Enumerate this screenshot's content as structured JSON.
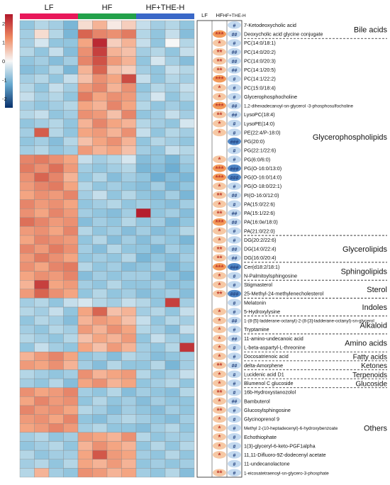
{
  "chart_data": {
    "type": "heatmap",
    "title": "",
    "groups": [
      {
        "name": "LF",
        "color": "#e8185a",
        "n": 4
      },
      {
        "name": "HF",
        "color": "#22a14a",
        "n": 4
      },
      {
        "name": "HF+THE-H",
        "color": "#3a68c8",
        "n": 4
      }
    ],
    "scale": {
      "min": -2.5,
      "max": 2.5,
      "ticks": [
        "2",
        "1",
        "0",
        "-1",
        "-2"
      ],
      "tick_values": [
        2,
        1,
        0,
        -1,
        -2
      ]
    },
    "sig_headers": [
      "LF",
      "HF",
      "HF+THE-H"
    ],
    "rows": [
      {
        "label": "7-Ketodeoxycholic acid",
        "values": [
          -0.6,
          -0.4,
          -0.5,
          -0.8,
          0.2,
          0.5,
          0.1,
          0.3,
          -0.3,
          -0.5,
          -0.4,
          -0.6
        ],
        "hf": "",
        "the": "#"
      },
      {
        "label": "Deoxycholic acid glycine conjugate",
        "values": [
          -0.5,
          0.2,
          -0.4,
          -0.8,
          1.2,
          0.9,
          0.8,
          1.0,
          -0.4,
          -0.6,
          -0.3,
          -0.7
        ],
        "hf": "***",
        "the": "##"
      },
      {
        "label": "PC(14:0/18:1)",
        "values": [
          -0.5,
          -0.2,
          -0.6,
          -0.6,
          0.6,
          2.2,
          0.3,
          0.5,
          -0.3,
          -0.6,
          0.0,
          -0.4
        ],
        "hf": "*",
        "the": "#"
      },
      {
        "label": "PC(14:0/20:2)",
        "values": [
          -0.4,
          -0.6,
          -0.3,
          -0.7,
          0.8,
          1.8,
          0.5,
          0.4,
          -0.5,
          -0.4,
          -0.6,
          -0.3
        ],
        "hf": "**",
        "the": "##"
      },
      {
        "label": "PC(14:0/20:3)",
        "values": [
          -0.6,
          -0.5,
          -0.7,
          -0.5,
          0.9,
          1.5,
          0.7,
          0.5,
          -0.6,
          -0.2,
          -0.5,
          -0.7
        ],
        "hf": "**",
        "the": "##"
      },
      {
        "label": "PC(14:1/20:5)",
        "values": [
          -0.7,
          -0.6,
          -0.4,
          -0.8,
          0.5,
          1.2,
          0.4,
          0.3,
          -0.5,
          -0.6,
          -0.3,
          -0.4
        ],
        "hf": "**",
        "the": "##"
      },
      {
        "label": "PC(14:1/22:2)",
        "values": [
          -0.5,
          -0.4,
          -0.6,
          -0.3,
          0.4,
          0.8,
          0.6,
          1.6,
          -0.3,
          -0.6,
          -0.4,
          -0.5
        ],
        "hf": "***",
        "the": "#"
      },
      {
        "label": "PC(15:0/18:4)",
        "values": [
          -0.4,
          -0.6,
          -0.3,
          -0.5,
          0.7,
          0.9,
          0.5,
          0.8,
          -0.6,
          -0.4,
          -0.5,
          -0.3
        ],
        "hf": "*",
        "the": "#"
      },
      {
        "label": "Glycerophosphocholine",
        "values": [
          -0.3,
          -0.5,
          -0.4,
          -0.6,
          1.0,
          0.6,
          0.8,
          0.7,
          -0.5,
          -0.2,
          -0.6,
          -0.4
        ],
        "hf": "*",
        "the": "#"
      },
      {
        "label": "1,2-dihexadecanoyl-sn-glycerol -3-phosphosulfocholine",
        "values": [
          -0.5,
          -0.6,
          -0.5,
          -0.4,
          0.6,
          0.5,
          0.9,
          0.6,
          -0.4,
          -0.6,
          -0.5,
          -0.6
        ],
        "hf": "***",
        "the": "##"
      },
      {
        "label": "LysoPC(18:4)",
        "values": [
          -0.4,
          -0.3,
          -0.6,
          -0.5,
          0.8,
          0.7,
          0.4,
          0.9,
          -0.6,
          -0.5,
          -0.3,
          -0.5
        ],
        "hf": "**",
        "the": "##"
      },
      {
        "label": "LysoPE(14:0)",
        "values": [
          -0.6,
          -0.5,
          -0.4,
          -0.6,
          0.5,
          0.9,
          0.6,
          0.5,
          -0.4,
          -0.5,
          -0.6,
          -0.2
        ],
        "hf": "*",
        "the": "#"
      },
      {
        "label": "PE(22:4/P-18:0)",
        "values": [
          -0.5,
          1.3,
          -0.4,
          -0.6,
          0.6,
          0.7,
          0.5,
          0.8,
          -0.3,
          -0.6,
          -0.4,
          -0.5
        ],
        "hf": "*",
        "the": "#"
      },
      {
        "label": "PG(20:0)",
        "values": [
          -0.6,
          -0.5,
          -0.7,
          -0.4,
          0.4,
          0.6,
          0.8,
          0.5,
          -0.6,
          -0.4,
          -0.5,
          -0.6
        ],
        "hf": "",
        "the": "###"
      },
      {
        "label": "PG(22:1/22:6)",
        "values": [
          -0.5,
          -0.4,
          -0.6,
          -0.5,
          0.7,
          0.5,
          0.6,
          0.4,
          -0.5,
          -0.6,
          -0.3,
          -0.4
        ],
        "hf": "",
        "the": "#"
      },
      {
        "label": "PG(6:0/6:0)",
        "values": [
          0.9,
          1.0,
          0.8,
          0.6,
          -0.3,
          -0.5,
          -0.4,
          -0.2,
          -0.7,
          -0.6,
          -0.8,
          -0.5
        ],
        "hf": "*",
        "the": "#"
      },
      {
        "label": "PG(O-16:0/13:0)",
        "values": [
          1.0,
          0.8,
          1.1,
          0.7,
          -0.5,
          -0.6,
          -0.5,
          -0.4,
          -0.8,
          -0.7,
          -0.9,
          -0.6
        ],
        "hf": "***",
        "the": "###"
      },
      {
        "label": "PG(O-16:0/14:0)",
        "values": [
          0.8,
          1.2,
          0.9,
          0.5,
          -0.6,
          -0.4,
          -0.7,
          -0.5,
          -0.6,
          -0.9,
          -0.7,
          -0.8
        ],
        "hf": "***",
        "the": "###"
      },
      {
        "label": "PG(O-18:0/22:1)",
        "values": [
          0.7,
          0.9,
          1.0,
          0.6,
          -0.4,
          -0.6,
          -0.5,
          -0.6,
          -0.7,
          -0.5,
          -0.8,
          -0.6
        ],
        "hf": "*",
        "the": "#"
      },
      {
        "label": "PI(O-16:0/12:0)",
        "values": [
          0.6,
          0.8,
          0.7,
          0.9,
          -0.5,
          -0.3,
          -0.6,
          -0.4,
          -0.6,
          -0.7,
          -0.5,
          -0.8
        ],
        "hf": "**",
        "the": "##"
      },
      {
        "label": "PA(15:0/22:6)",
        "values": [
          0.9,
          0.7,
          0.8,
          0.6,
          -0.6,
          -0.5,
          -0.4,
          -0.6,
          -0.5,
          -0.6,
          -0.7,
          -0.5
        ],
        "hf": "*",
        "the": "#"
      },
      {
        "label": "PA(15:1/22:6)",
        "values": [
          0.8,
          0.6,
          0.9,
          0.7,
          -0.5,
          -0.6,
          -0.7,
          -0.5,
          2.4,
          -0.6,
          -0.5,
          -0.7
        ],
        "hf": "**",
        "the": "##"
      },
      {
        "label": "PA(16:0e/18:0)",
        "values": [
          1.1,
          0.9,
          0.7,
          0.8,
          -0.7,
          -0.5,
          -0.6,
          -0.4,
          -0.6,
          -0.5,
          -0.8,
          -0.6
        ],
        "hf": "***",
        "the": "##"
      },
      {
        "label": "PA(21:0/22:0)",
        "values": [
          0.7,
          0.8,
          0.6,
          0.9,
          -0.4,
          -0.6,
          -0.5,
          -0.7,
          -0.5,
          -0.7,
          -0.6,
          -0.4
        ],
        "hf": "*",
        "the": "#"
      },
      {
        "label": "DG(20:2/22:6)",
        "values": [
          0.6,
          0.9,
          0.8,
          0.7,
          -0.6,
          -0.4,
          -0.7,
          -0.5,
          -0.7,
          -0.5,
          -0.6,
          -0.8
        ],
        "hf": "*",
        "the": "#"
      },
      {
        "label": "DG(14:0/22:4)",
        "values": [
          0.9,
          0.7,
          1.0,
          0.8,
          -0.5,
          -0.7,
          -0.4,
          -0.6,
          -0.6,
          -0.8,
          -0.5,
          -0.6
        ],
        "hf": "**",
        "the": "##"
      },
      {
        "label": "DG(16:0/20:4)",
        "values": [
          0.7,
          1.0,
          0.8,
          0.6,
          -0.6,
          -0.5,
          -0.6,
          -0.4,
          -0.8,
          -0.6,
          -0.7,
          -0.5
        ],
        "hf": "**",
        "the": "##"
      },
      {
        "label": "Cer(d18:2/18:1)",
        "values": [
          0.8,
          0.6,
          0.9,
          1.0,
          -0.4,
          -0.6,
          -0.5,
          -0.7,
          -0.6,
          -0.5,
          -0.8,
          -0.6
        ],
        "hf": "***",
        "the": "###"
      },
      {
        "label": "N-Palmitoylsphingosine",
        "values": [
          0.6,
          0.8,
          0.7,
          0.9,
          -0.7,
          -0.5,
          -0.6,
          -0.5,
          -0.5,
          -0.7,
          -0.6,
          -0.8
        ],
        "hf": "*",
        "the": "#"
      },
      {
        "label": "Stigmasterol",
        "values": [
          0.5,
          1.8,
          0.6,
          0.7,
          -0.5,
          -0.6,
          -0.4,
          -0.6,
          -0.6,
          -0.5,
          -0.7,
          -0.6
        ],
        "hf": "*",
        "the": "#"
      },
      {
        "label": "25-Methyl-24-methylenecholesterol",
        "values": [
          0.7,
          1.2,
          0.8,
          0.6,
          -0.6,
          -0.4,
          -0.6,
          -0.5,
          -0.7,
          -0.6,
          -0.5,
          -0.7
        ],
        "hf": "**",
        "the": "###"
      },
      {
        "label": "Melatonin",
        "values": [
          -0.5,
          -0.4,
          -0.6,
          -0.3,
          -0.2,
          -0.4,
          -0.5,
          -0.3,
          -0.4,
          -0.6,
          1.8,
          -0.5
        ],
        "hf": "",
        "the": "#"
      },
      {
        "label": "5-Hydroxylysine",
        "values": [
          -0.4,
          -0.5,
          -0.3,
          -0.6,
          0.6,
          1.2,
          0.4,
          0.5,
          -0.5,
          -0.4,
          -0.6,
          -0.3
        ],
        "hf": "*",
        "the": "#"
      },
      {
        "label": "1-(8-[5]-ladderane-octanyl)-2-(8-[3]-ladderane-octanyl)-sn-glycerol",
        "values": [
          -0.6,
          -0.4,
          -0.5,
          -0.7,
          0.5,
          0.7,
          0.6,
          0.4,
          -0.3,
          -0.6,
          -0.4,
          -0.5
        ],
        "hf": "*",
        "the": "##"
      },
      {
        "label": "Tryptamine",
        "values": [
          -0.5,
          -0.6,
          -0.4,
          -0.5,
          0.7,
          0.5,
          0.8,
          0.6,
          -0.4,
          -0.5,
          -0.7,
          -0.3
        ],
        "hf": "*",
        "the": "#"
      },
      {
        "label": "11-amino-undecanoic acid",
        "values": [
          -0.4,
          -0.5,
          -0.6,
          -0.4,
          0.4,
          0.6,
          0.5,
          0.7,
          -0.6,
          -0.3,
          -0.5,
          -0.6
        ],
        "hf": "*",
        "the": "##"
      },
      {
        "label": "L-beta-aspartyl-L-threonine",
        "values": [
          -0.6,
          -0.3,
          -0.5,
          -0.6,
          0.6,
          0.4,
          0.7,
          0.5,
          -0.5,
          -0.6,
          -0.4,
          2.0
        ],
        "hf": "*",
        "the": "#"
      },
      {
        "label": "Docosatrienoic acid",
        "values": [
          0.5,
          0.7,
          0.9,
          0.6,
          -0.6,
          -0.5,
          -0.7,
          -0.4,
          -0.5,
          -0.7,
          -0.6,
          -0.5
        ],
        "hf": "*",
        "the": "#"
      },
      {
        "label": "delta-Amorphene",
        "values": [
          0.7,
          0.6,
          0.8,
          0.5,
          -0.5,
          -0.7,
          -0.4,
          -0.6,
          -0.6,
          -0.4,
          -0.8,
          -0.5
        ],
        "hf": "**",
        "the": "##"
      },
      {
        "label": "Lucidenic acid D1",
        "values": [
          -0.4,
          -0.5,
          -0.6,
          -0.5,
          0.8,
          0.5,
          0.6,
          0.7,
          -0.4,
          -0.6,
          -0.5,
          -0.3
        ],
        "hf": "*",
        "the": "#"
      },
      {
        "label": "Blumenol C glucoside",
        "values": [
          -0.5,
          -0.6,
          -0.4,
          -0.7,
          0.6,
          0.8,
          0.5,
          0.6,
          -0.6,
          -0.5,
          -0.4,
          -0.6
        ],
        "hf": "*",
        "the": "#"
      },
      {
        "label": "16b-Hydroxystanozolol",
        "values": [
          0.8,
          0.6,
          0.7,
          0.9,
          -0.5,
          -0.6,
          -0.4,
          -0.7,
          -0.5,
          -0.6,
          -0.7,
          -0.4
        ],
        "hf": "**",
        "the": "#"
      },
      {
        "label": "Bambuterol",
        "values": [
          0.6,
          0.9,
          0.7,
          0.8,
          -0.6,
          -0.4,
          -0.6,
          -0.5,
          -0.7,
          -0.5,
          -0.6,
          -0.6
        ],
        "hf": "*",
        "the": "##"
      },
      {
        "label": "Glucosylsphingosine",
        "values": [
          0.9,
          0.7,
          0.8,
          0.6,
          -0.4,
          -0.5,
          -0.7,
          -0.5,
          -0.6,
          -0.7,
          -0.5,
          -0.6
        ],
        "hf": "**",
        "the": "#"
      },
      {
        "label": "Glycinoprenol 9",
        "values": [
          0.7,
          0.8,
          0.6,
          0.9,
          -0.6,
          -0.7,
          -0.5,
          -0.4,
          -0.5,
          -0.6,
          -0.7,
          -0.5
        ],
        "hf": "*",
        "the": "#"
      },
      {
        "label": "Methyl 2-(10-heptadecenyl)-6-hydroxybenzoate",
        "values": [
          0.6,
          0.7,
          0.9,
          0.7,
          -0.5,
          -0.4,
          -0.6,
          -0.6,
          -0.7,
          -0.5,
          -0.4,
          -0.6
        ],
        "hf": "*",
        "the": "#"
      },
      {
        "label": "Echothiophate",
        "values": [
          -0.5,
          -0.4,
          -0.6,
          -0.5,
          0.7,
          0.6,
          0.5,
          0.8,
          -0.4,
          -0.6,
          -0.5,
          -0.5
        ],
        "hf": "*",
        "the": "#"
      },
      {
        "label": "1(3)-glyceryl-6-keto-PGF1alpha",
        "values": [
          -0.6,
          -0.5,
          -0.4,
          -0.6,
          0.5,
          0.8,
          0.6,
          0.5,
          -0.6,
          -0.4,
          -0.6,
          -0.4
        ],
        "hf": "*",
        "the": "#"
      },
      {
        "label": "11,11-Difluoro-9Z-dodecenyl acetate",
        "values": [
          -0.4,
          -0.6,
          -0.5,
          -0.5,
          0.6,
          1.4,
          0.7,
          0.6,
          -0.5,
          -0.6,
          -0.4,
          -0.6
        ],
        "hf": "*",
        "the": "#"
      },
      {
        "label": "11-undecanolactone",
        "values": [
          -0.5,
          -0.4,
          -0.6,
          -0.4,
          0.6,
          0.5,
          0.7,
          0.5,
          -0.6,
          -0.5,
          -0.6,
          -0.5
        ],
        "hf": "",
        "the": "#"
      },
      {
        "label": "1-eicosatetraenoyl-sn-glycero-3-phosphate",
        "values": [
          -0.4,
          0.5,
          -0.5,
          -0.6,
          0.8,
          0.7,
          0.5,
          0.6,
          -0.5,
          -0.6,
          -0.4,
          -0.7
        ],
        "hf": "**",
        "the": "#"
      }
    ],
    "categories": [
      {
        "name": "Bile acids",
        "from": 0,
        "to": 1
      },
      {
        "name": "Glycerophospholipids",
        "from": 2,
        "to": 23
      },
      {
        "name": "Glycerolipids",
        "from": 24,
        "to": 26
      },
      {
        "name": "Sphingolipids",
        "from": 27,
        "to": 28
      },
      {
        "name": "Sterol",
        "from": 29,
        "to": 30
      },
      {
        "name": "Indoles",
        "from": 31,
        "to": 32
      },
      {
        "name": "Alkaloid",
        "from": 33,
        "to": 34
      },
      {
        "name": "Amino acids",
        "from": 35,
        "to": 36
      },
      {
        "name": "Fatty acids",
        "from": 37,
        "to": 37
      },
      {
        "name": "Ketones",
        "from": 38,
        "to": 38
      },
      {
        "name": "Terpenoids",
        "from": 39,
        "to": 39
      },
      {
        "name": "Glucoside",
        "from": 40,
        "to": 40
      },
      {
        "name": "Others",
        "from": 41,
        "to": 49
      }
    ],
    "sig_style": {
      "hf_star_color": "#c0392b",
      "hf_bg": "#f6c8a4",
      "hf_bg_strong": "#f39a5a",
      "the_hash_color": "#1e3c7a",
      "the_bg": "#c3d9ef",
      "the_bg_strong": "#4f86c6"
    }
  }
}
